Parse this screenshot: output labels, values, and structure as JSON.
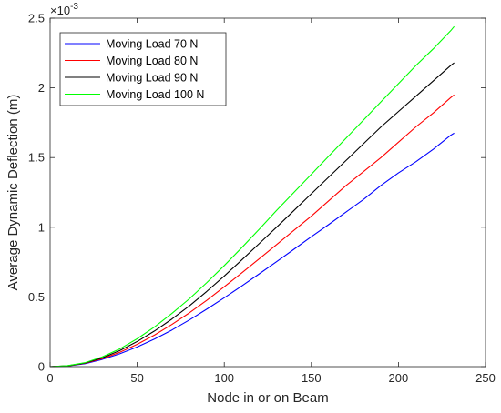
{
  "chart_data": {
    "type": "line",
    "xlabel": "Node in or on Beam",
    "ylabel": "Average Dynamic Deflection (m)",
    "xlim": [
      0,
      250
    ],
    "ylim": [
      0,
      2.5
    ],
    "xticks": [
      0,
      50,
      100,
      150,
      200,
      250
    ],
    "yticks": [
      0,
      0.5,
      1,
      1.5,
      2,
      2.5
    ],
    "xtick_labels": [
      "0",
      "50",
      "100",
      "150",
      "200",
      "250"
    ],
    "ytick_labels": [
      "0",
      "0.5",
      "1",
      "1.5",
      "2",
      "2.5"
    ],
    "y_exponent_label": "×10",
    "y_exponent": "-3",
    "grid": false,
    "legend_position": "top-left",
    "series": [
      {
        "name": "Moving Load 70 N",
        "color": "#0000ff",
        "x": [
          0,
          10,
          20,
          30,
          40,
          50,
          60,
          70,
          80,
          90,
          100,
          110,
          120,
          130,
          140,
          150,
          160,
          170,
          180,
          190,
          200,
          210,
          220,
          230,
          232
        ],
        "y": [
          0,
          0.004,
          0.021,
          0.052,
          0.092,
          0.141,
          0.198,
          0.263,
          0.335,
          0.413,
          0.494,
          0.578,
          0.665,
          0.753,
          0.842,
          0.932,
          1.02,
          1.11,
          1.2,
          1.3,
          1.39,
          1.47,
          1.56,
          1.66,
          1.675
        ]
      },
      {
        "name": "Moving Load 80 N",
        "color": "#ff0000",
        "x": [
          0,
          10,
          20,
          30,
          40,
          50,
          60,
          70,
          80,
          90,
          100,
          110,
          120,
          130,
          140,
          150,
          160,
          170,
          180,
          190,
          200,
          210,
          220,
          230,
          232
        ],
        "y": [
          0,
          0.005,
          0.024,
          0.057,
          0.103,
          0.16,
          0.227,
          0.303,
          0.386,
          0.476,
          0.573,
          0.672,
          0.773,
          0.875,
          0.978,
          1.08,
          1.19,
          1.3,
          1.4,
          1.5,
          1.61,
          1.72,
          1.82,
          1.93,
          1.95
        ]
      },
      {
        "name": "Moving Load 90 N",
        "color": "#000000",
        "x": [
          0,
          10,
          20,
          30,
          40,
          50,
          60,
          70,
          80,
          90,
          100,
          110,
          120,
          130,
          140,
          150,
          160,
          170,
          180,
          190,
          200,
          210,
          220,
          230,
          232
        ],
        "y": [
          0,
          0.006,
          0.026,
          0.063,
          0.115,
          0.18,
          0.256,
          0.342,
          0.436,
          0.54,
          0.65,
          0.765,
          0.882,
          1.0,
          1.12,
          1.24,
          1.36,
          1.48,
          1.6,
          1.72,
          1.83,
          1.94,
          2.05,
          2.16,
          2.18
        ]
      },
      {
        "name": "Moving Load 100 N",
        "color": "#00ff00",
        "x": [
          0,
          10,
          20,
          30,
          40,
          50,
          60,
          70,
          80,
          90,
          100,
          110,
          120,
          130,
          140,
          150,
          160,
          170,
          180,
          190,
          200,
          210,
          220,
          230,
          232
        ],
        "y": [
          0,
          0.007,
          0.028,
          0.07,
          0.127,
          0.2,
          0.285,
          0.382,
          0.487,
          0.603,
          0.725,
          0.853,
          0.985,
          1.12,
          1.25,
          1.38,
          1.51,
          1.64,
          1.77,
          1.9,
          2.03,
          2.16,
          2.28,
          2.41,
          2.44
        ]
      }
    ]
  }
}
